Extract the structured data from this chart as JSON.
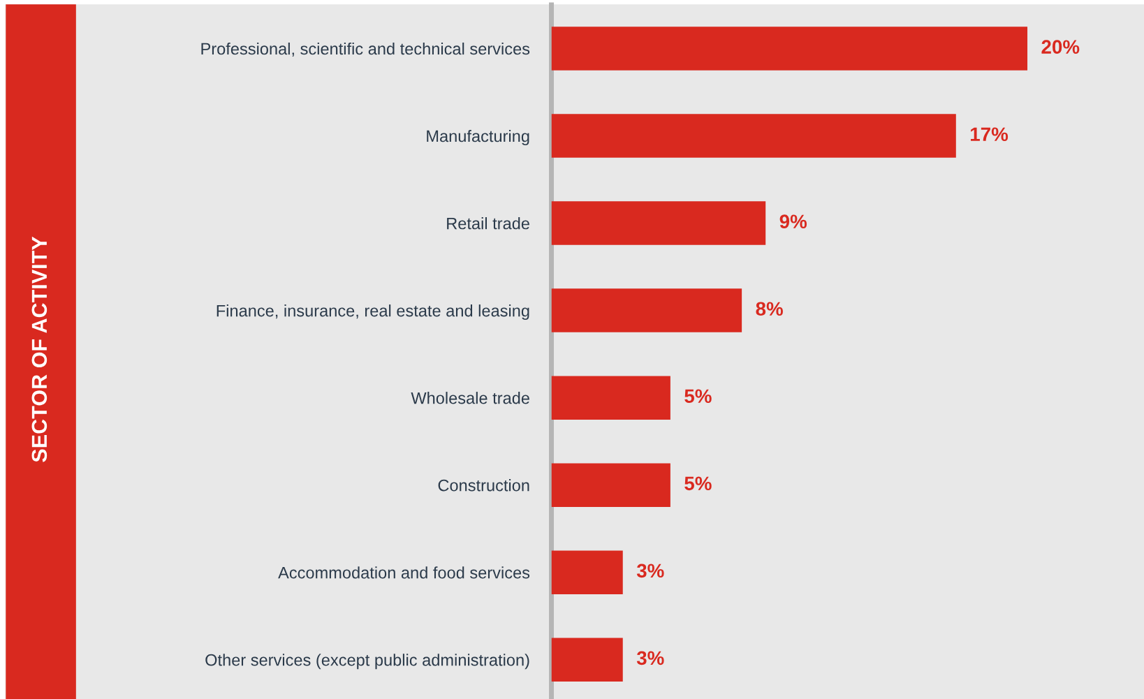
{
  "chart_data": {
    "type": "bar",
    "orientation": "horizontal",
    "annotations": [
      "SECTOR OF ACTIVITY"
    ],
    "categories": [
      "Professional, scientific and technical services",
      "Manufacturing",
      "Retail trade",
      "Finance, insurance, real estate and leasing",
      "Wholesale trade",
      "Construction",
      "Accommodation and food services",
      "Other services (except public administration)"
    ],
    "values": [
      20,
      17,
      9,
      8,
      5,
      5,
      3,
      3
    ],
    "color": "#d9291f",
    "value_labels": [
      "20%",
      "17%",
      "9%",
      "8%",
      "5%",
      "5%",
      "3%",
      "3%"
    ]
  }
}
